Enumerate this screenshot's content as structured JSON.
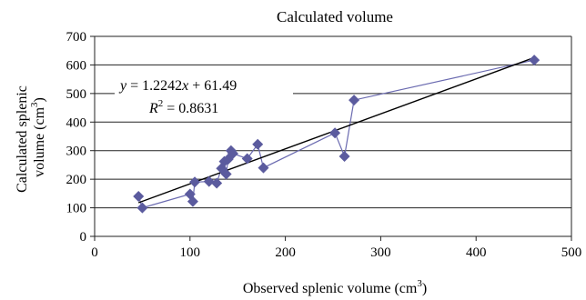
{
  "chart_data": {
    "type": "scatter",
    "title": "Calculated volume",
    "xlabel": "Observed splenic volume (cm",
    "xlabel_sup": "3",
    "xlabel_end": ")",
    "ylabel_line1": "Calculated splenic",
    "ylabel_line2": "volume (cm",
    "ylabel_sup": "3",
    "ylabel_end": ")",
    "xlim": [
      0,
      500
    ],
    "ylim": [
      0,
      700
    ],
    "xticks": [
      0,
      100,
      200,
      300,
      400,
      500
    ],
    "yticks": [
      0,
      100,
      200,
      300,
      400,
      500,
      600,
      700
    ],
    "grid": "horizontal",
    "series": [
      {
        "marker_color": "#5b5b9e",
        "line_color": "#6a6ab0",
        "marker": "diamond",
        "connected": true,
        "x": [
          46,
          50,
          100,
          103,
          105,
          120,
          128,
          133,
          136,
          138,
          140,
          143,
          145,
          160,
          171,
          177,
          252,
          262,
          272,
          461
        ],
        "y": [
          140,
          100,
          148,
          122,
          190,
          192,
          186,
          238,
          262,
          218,
          270,
          300,
          290,
          272,
          322,
          240,
          362,
          280,
          477,
          617
        ]
      }
    ],
    "trendline": {
      "color": "#000000",
      "slope": 1.2242,
      "intercept": 61.49,
      "x_range": [
        46,
        461
      ],
      "equation_y": "y",
      "equation_rest": " = 1.2242",
      "equation_x": "x",
      "equation_end": " + 61.49",
      "r2_label": "R",
      "r2_sup": "2",
      "r2_value": " = 0.8631"
    }
  }
}
